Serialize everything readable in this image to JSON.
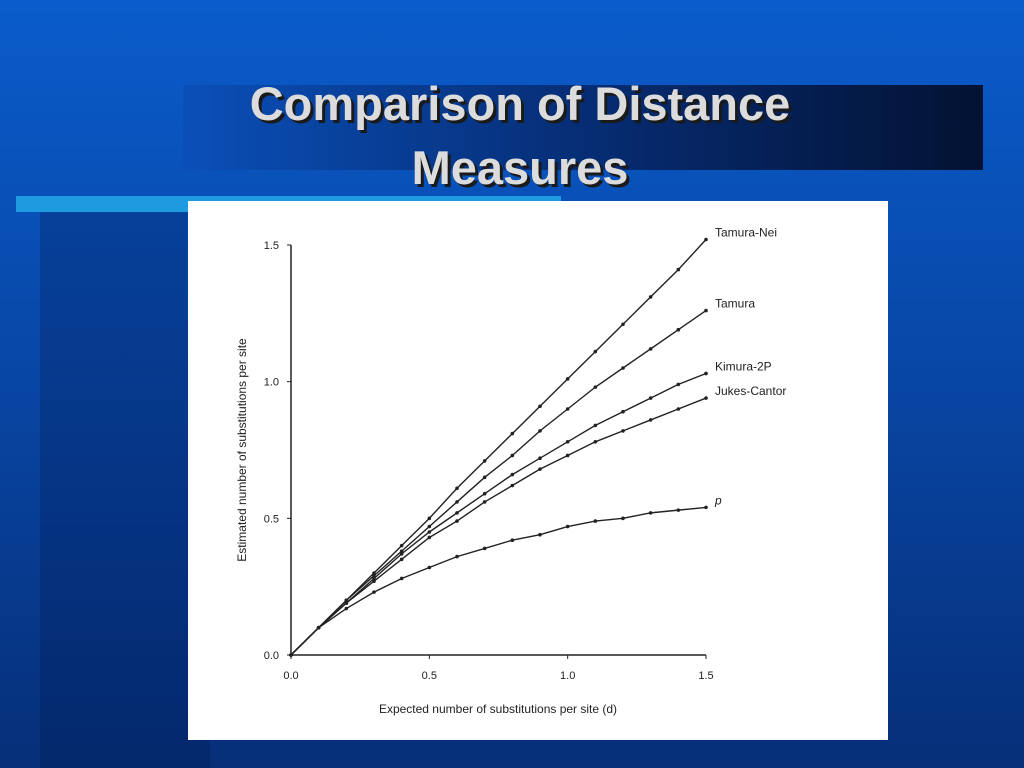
{
  "title": "Comparison of Distance Measures",
  "chart_data": {
    "type": "line",
    "x_label": "Expected number of substitutions per site (d)",
    "y_label": "Estimated number of substitutions per site",
    "x": [
      0,
      0.1,
      0.2,
      0.3,
      0.4,
      0.5,
      0.6,
      0.7,
      0.8,
      0.9,
      1.0,
      1.1,
      1.2,
      1.3,
      1.4,
      1.5
    ],
    "xlim": [
      0,
      1.5
    ],
    "ylim": [
      0,
      1.5
    ],
    "xticks": [
      {
        "value": 0,
        "label": "0.0"
      },
      0.5,
      {
        "value": 1,
        "label": "1.0"
      },
      1.5
    ],
    "yticks": [
      {
        "value": 0,
        "label": "0.0"
      },
      0.5,
      {
        "value": 1,
        "label": "1.0"
      },
      1.5
    ],
    "series": [
      {
        "name": "Tamura-Nei",
        "color": "#222222",
        "values": [
          0,
          0.1,
          0.2,
          0.3,
          0.4,
          0.5,
          0.61,
          0.71,
          0.81,
          0.91,
          1.01,
          1.11,
          1.21,
          1.31,
          1.41,
          1.52
        ]
      },
      {
        "name": "Tamura",
        "color": "#222222",
        "values": [
          0,
          0.1,
          0.2,
          0.29,
          0.38,
          0.47,
          0.56,
          0.65,
          0.73,
          0.82,
          0.9,
          0.98,
          1.05,
          1.12,
          1.19,
          1.26
        ]
      },
      {
        "name": "Kimura-2P",
        "color": "#222222",
        "values": [
          0,
          0.1,
          0.19,
          0.28,
          0.37,
          0.45,
          0.52,
          0.59,
          0.66,
          0.72,
          0.78,
          0.84,
          0.89,
          0.94,
          0.99,
          1.03
        ]
      },
      {
        "name": "Jukes-Cantor",
        "color": "#222222",
        "values": [
          0,
          0.1,
          0.19,
          0.27,
          0.35,
          0.43,
          0.49,
          0.56,
          0.62,
          0.68,
          0.73,
          0.78,
          0.82,
          0.86,
          0.9,
          0.94
        ]
      },
      {
        "name": "p",
        "color": "#222222",
        "values": [
          0,
          0.1,
          0.17,
          0.23,
          0.28,
          0.32,
          0.36,
          0.39,
          0.42,
          0.44,
          0.47,
          0.49,
          0.5,
          0.52,
          0.53,
          0.54
        ]
      }
    ]
  }
}
